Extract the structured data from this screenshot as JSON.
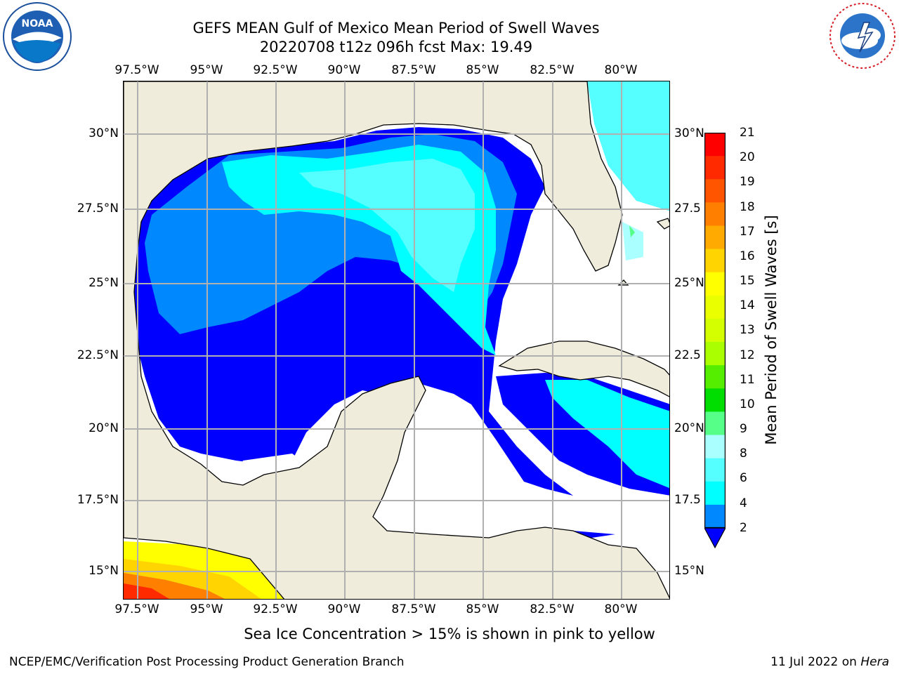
{
  "header": {
    "title_line1": "GEFS MEAN Gulf of Mexico Mean Period of Swell Waves",
    "title_line2": "20220708 t12z 096h fcst   Max: 19.49"
  },
  "logos": {
    "noaa": {
      "text": "NOAA",
      "ring_text": "NATIONAL OCEANIC AND ATMOSPHERIC ADMINISTRATION · U.S. DEPARTMENT OF COMMERCE"
    },
    "nws": {
      "ring_text": "NATIONAL WEATHER SERVICE"
    }
  },
  "map": {
    "lon_labels": [
      "97.5°W",
      "95°W",
      "92.5°W",
      "90°W",
      "87.5°W",
      "85°W",
      "82.5°W",
      "80°W"
    ],
    "lat_labels_left": [
      "30°N",
      "27.5°N",
      "25°N",
      "22.5°N",
      "20°N",
      "17.5°N",
      "15°N"
    ],
    "lat_labels_right": [
      "30°N",
      "27.5",
      "25°N",
      "22.5",
      "20°N",
      "17.5",
      "15°N"
    ],
    "land_color": "#efecdc",
    "grid_color": "#b0b0b0"
  },
  "colorbar": {
    "label": "Mean Period of Swell Waves [s]",
    "ticks": [
      "21",
      "20",
      "19",
      "18",
      "17",
      "16",
      "15",
      "14",
      "13",
      "12",
      "11",
      "10",
      "9",
      "8",
      "6",
      "4",
      "2"
    ],
    "colors": [
      "#ff0000",
      "#ff2a00",
      "#ff5500",
      "#ff7f00",
      "#ffaa00",
      "#ffd400",
      "#ffff00",
      "#eaff00",
      "#d4ff00",
      "#aaff00",
      "#55ee00",
      "#00dd00",
      "#55ff88",
      "#aaffff",
      "#55ffff",
      "#00ffff",
      "#0088ff",
      "#0000ff"
    ]
  },
  "note": "Sea Ice Concentration > 15% is shown in pink to yellow",
  "footer": {
    "left": "NCEP/EMC/Verification Post Processing Product Generation Branch",
    "right_prefix": "11 Jul 2022 on ",
    "right_machine": "Hera"
  }
}
